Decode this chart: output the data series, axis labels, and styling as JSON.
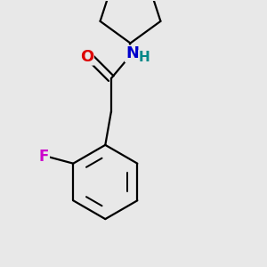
{
  "background_color": "#e8e8e8",
  "bond_color": "#000000",
  "atom_colors": {
    "O": "#dd0000",
    "N": "#0000cc",
    "H": "#008888",
    "F": "#cc00cc"
  },
  "bond_width": 1.6,
  "dpi": 100,
  "figsize": [
    3.0,
    3.0
  ],
  "xlim": [
    0,
    300
  ],
  "ylim": [
    0,
    300
  ]
}
